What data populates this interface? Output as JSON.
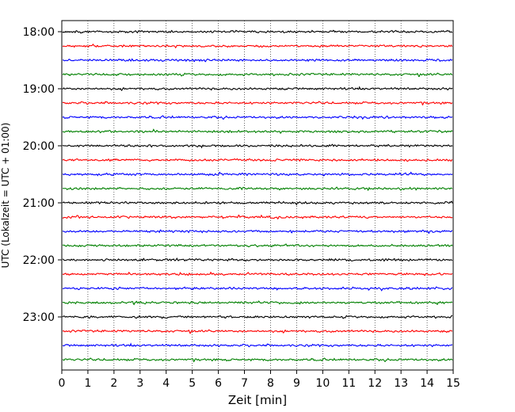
{
  "chart_data": {
    "type": "line",
    "title": "",
    "xlabel": "Zeit  [min]",
    "ylabel": "UTC (Lokalzeit = UTC + 01:00)",
    "xlim": [
      0,
      15
    ],
    "x_ticks": [
      0,
      1,
      2,
      3,
      4,
      5,
      6,
      7,
      8,
      9,
      10,
      11,
      12,
      13,
      14,
      15
    ],
    "y_tick_labels": [
      "18:00",
      "19:00",
      "20:00",
      "21:00",
      "22:00",
      "23:00"
    ],
    "vertical_grid": true,
    "grid_style": "dotted",
    "trace_interval_minutes": 15,
    "trace_colors": [
      "#000000",
      "#ff0000",
      "#0000ff",
      "#008000"
    ],
    "traces": [
      {
        "start": "18:00",
        "color": "#000000"
      },
      {
        "start": "18:15",
        "color": "#ff0000"
      },
      {
        "start": "18:30",
        "color": "#0000ff"
      },
      {
        "start": "18:45",
        "color": "#008000"
      },
      {
        "start": "19:00",
        "color": "#000000"
      },
      {
        "start": "19:15",
        "color": "#ff0000"
      },
      {
        "start": "19:30",
        "color": "#0000ff"
      },
      {
        "start": "19:45",
        "color": "#008000"
      },
      {
        "start": "20:00",
        "color": "#000000"
      },
      {
        "start": "20:15",
        "color": "#ff0000"
      },
      {
        "start": "20:30",
        "color": "#0000ff"
      },
      {
        "start": "20:45",
        "color": "#008000"
      },
      {
        "start": "21:00",
        "color": "#000000"
      },
      {
        "start": "21:15",
        "color": "#ff0000"
      },
      {
        "start": "21:30",
        "color": "#0000ff"
      },
      {
        "start": "21:45",
        "color": "#008000"
      },
      {
        "start": "22:00",
        "color": "#000000"
      },
      {
        "start": "22:15",
        "color": "#ff0000"
      },
      {
        "start": "22:30",
        "color": "#0000ff"
      },
      {
        "start": "22:45",
        "color": "#008000"
      },
      {
        "start": "23:00",
        "color": "#000000"
      },
      {
        "start": "23:15",
        "color": "#ff0000"
      },
      {
        "start": "23:30",
        "color": "#0000ff"
      },
      {
        "start": "23:45",
        "color": "#008000"
      }
    ]
  }
}
